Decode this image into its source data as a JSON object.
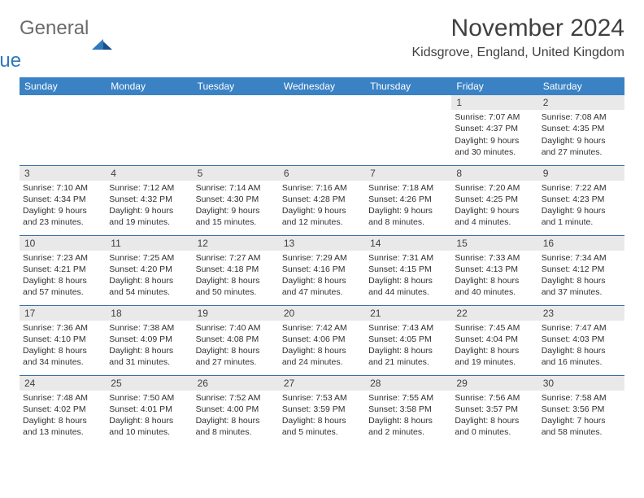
{
  "brand": {
    "general": "General",
    "blue": "Blue"
  },
  "title": "November 2024",
  "location": "Kidsgrove, England, United Kingdom",
  "colors": {
    "header_bg": "#3a82c4",
    "header_text": "#ffffff",
    "rule": "#3a6fa5",
    "daynum_bg": "#e9e9e9",
    "text": "#303030",
    "logo_gray": "#6b6b6b",
    "logo_blue": "#2f79bd"
  },
  "typography": {
    "title_fontsize": 30,
    "location_fontsize": 16,
    "dow_fontsize": 12,
    "daynum_fontsize": 12,
    "body_fontsize": 10.5
  },
  "days_of_week": [
    "Sunday",
    "Monday",
    "Tuesday",
    "Wednesday",
    "Thursday",
    "Friday",
    "Saturday"
  ],
  "weeks": [
    [
      {
        "empty": true
      },
      {
        "empty": true
      },
      {
        "empty": true
      },
      {
        "empty": true
      },
      {
        "empty": true
      },
      {
        "num": "1",
        "sunrise": "Sunrise: 7:07 AM",
        "sunset": "Sunset: 4:37 PM",
        "daylight": "Daylight: 9 hours and 30 minutes."
      },
      {
        "num": "2",
        "sunrise": "Sunrise: 7:08 AM",
        "sunset": "Sunset: 4:35 PM",
        "daylight": "Daylight: 9 hours and 27 minutes."
      }
    ],
    [
      {
        "num": "3",
        "sunrise": "Sunrise: 7:10 AM",
        "sunset": "Sunset: 4:34 PM",
        "daylight": "Daylight: 9 hours and 23 minutes."
      },
      {
        "num": "4",
        "sunrise": "Sunrise: 7:12 AM",
        "sunset": "Sunset: 4:32 PM",
        "daylight": "Daylight: 9 hours and 19 minutes."
      },
      {
        "num": "5",
        "sunrise": "Sunrise: 7:14 AM",
        "sunset": "Sunset: 4:30 PM",
        "daylight": "Daylight: 9 hours and 15 minutes."
      },
      {
        "num": "6",
        "sunrise": "Sunrise: 7:16 AM",
        "sunset": "Sunset: 4:28 PM",
        "daylight": "Daylight: 9 hours and 12 minutes."
      },
      {
        "num": "7",
        "sunrise": "Sunrise: 7:18 AM",
        "sunset": "Sunset: 4:26 PM",
        "daylight": "Daylight: 9 hours and 8 minutes."
      },
      {
        "num": "8",
        "sunrise": "Sunrise: 7:20 AM",
        "sunset": "Sunset: 4:25 PM",
        "daylight": "Daylight: 9 hours and 4 minutes."
      },
      {
        "num": "9",
        "sunrise": "Sunrise: 7:22 AM",
        "sunset": "Sunset: 4:23 PM",
        "daylight": "Daylight: 9 hours and 1 minute."
      }
    ],
    [
      {
        "num": "10",
        "sunrise": "Sunrise: 7:23 AM",
        "sunset": "Sunset: 4:21 PM",
        "daylight": "Daylight: 8 hours and 57 minutes."
      },
      {
        "num": "11",
        "sunrise": "Sunrise: 7:25 AM",
        "sunset": "Sunset: 4:20 PM",
        "daylight": "Daylight: 8 hours and 54 minutes."
      },
      {
        "num": "12",
        "sunrise": "Sunrise: 7:27 AM",
        "sunset": "Sunset: 4:18 PM",
        "daylight": "Daylight: 8 hours and 50 minutes."
      },
      {
        "num": "13",
        "sunrise": "Sunrise: 7:29 AM",
        "sunset": "Sunset: 4:16 PM",
        "daylight": "Daylight: 8 hours and 47 minutes."
      },
      {
        "num": "14",
        "sunrise": "Sunrise: 7:31 AM",
        "sunset": "Sunset: 4:15 PM",
        "daylight": "Daylight: 8 hours and 44 minutes."
      },
      {
        "num": "15",
        "sunrise": "Sunrise: 7:33 AM",
        "sunset": "Sunset: 4:13 PM",
        "daylight": "Daylight: 8 hours and 40 minutes."
      },
      {
        "num": "16",
        "sunrise": "Sunrise: 7:34 AM",
        "sunset": "Sunset: 4:12 PM",
        "daylight": "Daylight: 8 hours and 37 minutes."
      }
    ],
    [
      {
        "num": "17",
        "sunrise": "Sunrise: 7:36 AM",
        "sunset": "Sunset: 4:10 PM",
        "daylight": "Daylight: 8 hours and 34 minutes."
      },
      {
        "num": "18",
        "sunrise": "Sunrise: 7:38 AM",
        "sunset": "Sunset: 4:09 PM",
        "daylight": "Daylight: 8 hours and 31 minutes."
      },
      {
        "num": "19",
        "sunrise": "Sunrise: 7:40 AM",
        "sunset": "Sunset: 4:08 PM",
        "daylight": "Daylight: 8 hours and 27 minutes."
      },
      {
        "num": "20",
        "sunrise": "Sunrise: 7:42 AM",
        "sunset": "Sunset: 4:06 PM",
        "daylight": "Daylight: 8 hours and 24 minutes."
      },
      {
        "num": "21",
        "sunrise": "Sunrise: 7:43 AM",
        "sunset": "Sunset: 4:05 PM",
        "daylight": "Daylight: 8 hours and 21 minutes."
      },
      {
        "num": "22",
        "sunrise": "Sunrise: 7:45 AM",
        "sunset": "Sunset: 4:04 PM",
        "daylight": "Daylight: 8 hours and 19 minutes."
      },
      {
        "num": "23",
        "sunrise": "Sunrise: 7:47 AM",
        "sunset": "Sunset: 4:03 PM",
        "daylight": "Daylight: 8 hours and 16 minutes."
      }
    ],
    [
      {
        "num": "24",
        "sunrise": "Sunrise: 7:48 AM",
        "sunset": "Sunset: 4:02 PM",
        "daylight": "Daylight: 8 hours and 13 minutes."
      },
      {
        "num": "25",
        "sunrise": "Sunrise: 7:50 AM",
        "sunset": "Sunset: 4:01 PM",
        "daylight": "Daylight: 8 hours and 10 minutes."
      },
      {
        "num": "26",
        "sunrise": "Sunrise: 7:52 AM",
        "sunset": "Sunset: 4:00 PM",
        "daylight": "Daylight: 8 hours and 8 minutes."
      },
      {
        "num": "27",
        "sunrise": "Sunrise: 7:53 AM",
        "sunset": "Sunset: 3:59 PM",
        "daylight": "Daylight: 8 hours and 5 minutes."
      },
      {
        "num": "28",
        "sunrise": "Sunrise: 7:55 AM",
        "sunset": "Sunset: 3:58 PM",
        "daylight": "Daylight: 8 hours and 2 minutes."
      },
      {
        "num": "29",
        "sunrise": "Sunrise: 7:56 AM",
        "sunset": "Sunset: 3:57 PM",
        "daylight": "Daylight: 8 hours and 0 minutes."
      },
      {
        "num": "30",
        "sunrise": "Sunrise: 7:58 AM",
        "sunset": "Sunset: 3:56 PM",
        "daylight": "Daylight: 7 hours and 58 minutes."
      }
    ]
  ]
}
